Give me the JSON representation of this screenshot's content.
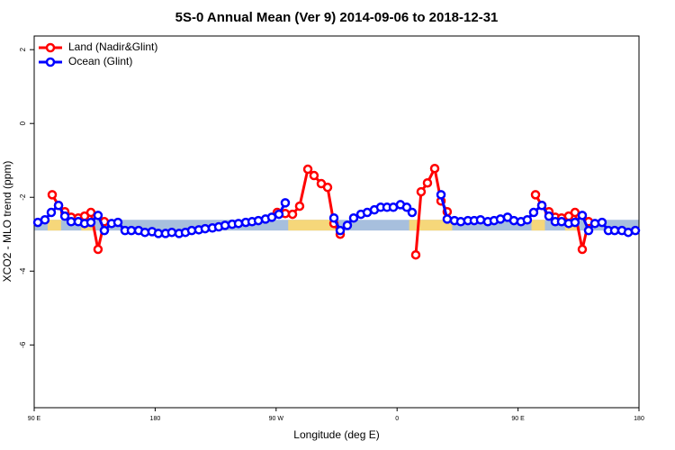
{
  "chart_data": {
    "type": "line",
    "title": "5S-0 Annual Mean (Ver 9)   2014-09-06 to 2018-12-31",
    "x_label": "Longitude (deg E)",
    "y_label": "XCO2 - MLO trend (ppm)",
    "xlim": [
      90,
      540
    ],
    "xticks": [
      {
        "value": 90,
        "label": "90 E"
      },
      {
        "value": 180,
        "label": "180"
      },
      {
        "value": 270,
        "label": "90 W"
      },
      {
        "value": 360,
        "label": "0"
      },
      {
        "value": 450,
        "label": "90 E"
      },
      {
        "value": 540,
        "label": "180"
      }
    ],
    "ylim": [
      -7.7,
      2.37
    ],
    "yticks": [
      -6,
      -4,
      -2,
      0,
      2
    ],
    "legend": "top-left",
    "band": {
      "range": [
        -2.9,
        -2.61
      ],
      "ocean_color": "#a7bfdd",
      "land_color": "#f6d77a",
      "land_segments": [
        [
          100,
          110
        ],
        [
          125,
          135
        ],
        [
          279,
          316
        ],
        [
          369,
          401
        ],
        [
          460,
          470
        ],
        [
          485,
          495
        ]
      ]
    },
    "series": [
      {
        "name": "Land (Nadir&Glint)",
        "color": "#ff0000",
        "x": [
          103.4,
          108.1,
          112.8,
          117.5,
          122.8,
          127.5,
          132.2,
          137.5,
          142.2,
          null,
          270.8,
          276.8,
          282.2,
          287.5,
          293.6,
          298.2,
          303.6,
          308.3,
          313.0,
          317.7,
          null,
          373.9,
          377.9,
          382.6,
          388.0,
          392.7,
          397.3,
          null,
          463.0,
          467.7,
          473.0,
          477.7,
          482.4,
          487.7,
          492.4,
          497.8,
          502.5
        ],
        "values": [
          -1.93,
          -2.22,
          -2.39,
          -2.54,
          -2.56,
          -2.51,
          -2.41,
          -3.41,
          -2.66,
          null,
          -2.41,
          -2.44,
          -2.46,
          -2.24,
          -1.24,
          -1.41,
          -1.63,
          -1.73,
          -2.71,
          -3.0,
          null,
          -3.56,
          -1.85,
          -1.61,
          -1.22,
          -2.1,
          -2.39,
          null,
          -1.93,
          -2.22,
          -2.39,
          -2.54,
          -2.56,
          -2.51,
          -2.41,
          -3.41,
          -2.66
        ]
      },
      {
        "name": "Ocean (Glint)",
        "color": "#0000ff",
        "x": [
          92.7,
          98.0,
          102.7,
          108.1,
          112.8,
          117.5,
          122.8,
          127.5,
          132.2,
          137.5,
          142.2,
          147.6,
          152.3,
          157.6,
          162.3,
          167.7,
          172.4,
          177.7,
          182.4,
          187.7,
          192.4,
          197.8,
          202.5,
          207.2,
          212.5,
          217.2,
          222.6,
          227.3,
          232.0,
          237.3,
          242.0,
          247.4,
          252.1,
          256.8,
          262.1,
          266.8,
          272.1,
          276.8,
          null,
          313.0,
          317.7,
          323.0,
          327.7,
          333.1,
          337.8,
          343.1,
          347.8,
          352.5,
          357.2,
          362.5,
          367.2,
          371.2,
          null,
          392.7,
          397.3,
          402.7,
          407.4,
          412.7,
          417.4,
          422.1,
          427.5,
          432.2,
          436.9,
          442.2,
          446.9,
          452.2,
          456.9,
          461.6,
          467.7,
          473.0,
          477.7,
          482.4,
          487.7,
          492.4,
          497.8,
          502.5,
          507.2,
          512.5,
          517.2,
          521.9,
          527.3,
          532.0,
          537.3
        ],
        "values": [
          -2.68,
          -2.61,
          -2.41,
          -2.22,
          -2.51,
          -2.66,
          -2.66,
          -2.71,
          -2.68,
          -2.49,
          -2.9,
          -2.71,
          -2.68,
          -2.9,
          -2.9,
          -2.9,
          -2.95,
          -2.93,
          -2.98,
          -2.98,
          -2.95,
          -2.98,
          -2.95,
          -2.9,
          -2.88,
          -2.85,
          -2.83,
          -2.8,
          -2.76,
          -2.73,
          -2.71,
          -2.68,
          -2.66,
          -2.63,
          -2.59,
          -2.54,
          -2.46,
          -2.15,
          null,
          -2.56,
          -2.9,
          -2.76,
          -2.56,
          -2.46,
          -2.41,
          -2.34,
          -2.27,
          -2.27,
          -2.27,
          -2.2,
          -2.27,
          -2.41,
          null,
          -1.93,
          -2.59,
          -2.63,
          -2.66,
          -2.63,
          -2.63,
          -2.61,
          -2.66,
          -2.63,
          -2.59,
          -2.54,
          -2.63,
          -2.66,
          -2.61,
          -2.41,
          -2.22,
          -2.51,
          -2.66,
          -2.66,
          -2.71,
          -2.68,
          -2.49,
          -2.9,
          -2.71,
          -2.68,
          -2.9,
          -2.9,
          -2.9,
          -2.95,
          -2.9
        ]
      }
    ]
  }
}
